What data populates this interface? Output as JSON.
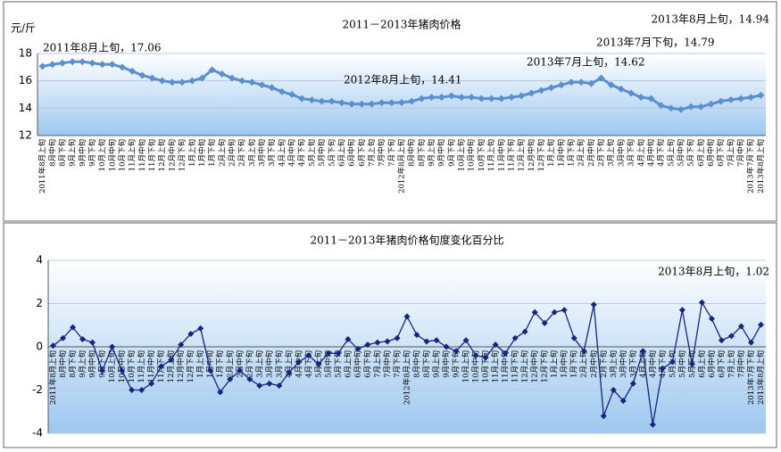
{
  "chart_data": [
    {
      "type": "line",
      "title": "2011－2013年猪肉价格",
      "y_label": "元/斤",
      "categories": [
        "2011年8月上旬",
        "8月中旬",
        "8月下旬",
        "9月上旬",
        "9月中旬",
        "9月下旬",
        "10月上旬",
        "10月中旬",
        "10月下旬",
        "11月上旬",
        "11月中旬",
        "11月下旬",
        "12月上旬",
        "12月中旬",
        "12月下旬",
        "1月上旬",
        "1月中旬",
        "1月下旬",
        "2月上旬",
        "2月中旬",
        "2月下旬",
        "3月上旬",
        "3月中旬",
        "3月下旬",
        "4月上旬",
        "4月中旬",
        "4月下旬",
        "5月上旬",
        "5月中旬",
        "5月下旬",
        "6月上旬",
        "6月中旬",
        "6月下旬",
        "7月上旬",
        "7月中旬",
        "7月下旬",
        "2012年8月上旬",
        "8月中旬",
        "8月下旬",
        "9月上旬",
        "9月中旬",
        "9月下旬",
        "10月上旬",
        "10月中旬",
        "10月下旬",
        "11月上旬",
        "11月中旬",
        "11月下旬",
        "12月上旬",
        "12月中旬",
        "12月下旬",
        "1月上旬",
        "1月中旬",
        "1月下旬",
        "2月上旬",
        "2月中旬",
        "2月下旬",
        "3月上旬",
        "3月中旬",
        "3月下旬",
        "4月上旬",
        "4月中旬",
        "4月下旬",
        "5月上旬",
        "5月中旬",
        "5月下旬",
        "6月上旬",
        "6月中旬",
        "6月下旬",
        "7月上旬",
        "7月中旬",
        "2013年7月下旬",
        "2013年8月上旬"
      ],
      "series": [
        {
          "color": "#5b8fd0",
          "values": [
            17.06,
            17.2,
            17.3,
            17.4,
            17.4,
            17.3,
            17.2,
            17.2,
            17.0,
            16.7,
            16.4,
            16.2,
            16.0,
            15.9,
            15.9,
            16.0,
            16.2,
            16.8,
            16.5,
            16.2,
            16.0,
            15.9,
            15.7,
            15.5,
            15.2,
            15.0,
            14.7,
            14.6,
            14.5,
            14.5,
            14.4,
            14.3,
            14.3,
            14.3,
            14.4,
            14.4,
            14.41,
            14.5,
            14.7,
            14.8,
            14.8,
            14.9,
            14.8,
            14.8,
            14.7,
            14.7,
            14.7,
            14.8,
            14.9,
            15.1,
            15.3,
            15.5,
            15.7,
            15.9,
            15.9,
            15.8,
            16.2,
            15.7,
            15.4,
            15.1,
            14.8,
            14.7,
            14.2,
            14.0,
            13.9,
            14.1,
            14.1,
            14.3,
            14.5,
            14.62,
            14.7,
            14.79,
            14.94
          ]
        }
      ],
      "ylim": [
        12,
        18
      ],
      "yticks": [
        12,
        14,
        16,
        18
      ],
      "grid": true,
      "annotations": [
        "2011年8月上旬，17.06",
        "2012年8月上旬，14.41",
        "2013年7月上旬，14.62",
        "2013年7月下旬，14.79",
        "2013年8月上旬，14.94"
      ]
    },
    {
      "type": "line",
      "title": "2011－2013年猪肉价格旬度变化百分比",
      "categories": [
        "2011年8月上旬",
        "8月中旬",
        "8月下旬",
        "9月上旬",
        "9月中旬",
        "9月下旬",
        "10月上旬",
        "10月中旬",
        "10月下旬",
        "11月上旬",
        "11月中旬",
        "11月下旬",
        "12月上旬",
        "12月中旬",
        "12月下旬",
        "1月上旬",
        "1月中旬",
        "1月下旬",
        "2月上旬",
        "2月中旬",
        "2月下旬",
        "3月上旬",
        "3月中旬",
        "3月下旬",
        "4月上旬",
        "4月中旬",
        "4月下旬",
        "5月上旬",
        "5月中旬",
        "5月下旬",
        "6月上旬",
        "6月中旬",
        "6月下旬",
        "7月上旬",
        "7月中旬",
        "7月下旬",
        "2012年8月上旬",
        "8月中旬",
        "8月下旬",
        "9月上旬",
        "9月中旬",
        "9月下旬",
        "10月上旬",
        "10月中旬",
        "10月下旬",
        "11月上旬",
        "11月中旬",
        "11月下旬",
        "12月上旬",
        "12月中旬",
        "12月下旬",
        "1月上旬",
        "1月中旬",
        "1月下旬",
        "2月上旬",
        "2月中旬",
        "2月下旬",
        "3月上旬",
        "3月中旬",
        "3月下旬",
        "4月上旬",
        "4月中旬",
        "4月下旬",
        "5月上旬",
        "5月中旬",
        "5月下旬",
        "6月上旬",
        "6月中旬",
        "6月下旬",
        "7月上旬",
        "7月中旬",
        "2013年7月下旬",
        "2013年8月上旬"
      ],
      "series": [
        {
          "color": "#1a237e",
          "values": [
            0.05,
            0.4,
            0.9,
            0.35,
            0.2,
            -1.1,
            0.0,
            -1.1,
            -2.0,
            -2.0,
            -1.7,
            -0.9,
            -0.6,
            0.1,
            0.6,
            0.85,
            -1.1,
            -2.1,
            -1.5,
            -1.1,
            -1.5,
            -1.8,
            -1.7,
            -1.8,
            -1.2,
            -0.7,
            -0.4,
            -0.8,
            -0.3,
            -0.3,
            0.35,
            -0.1,
            0.1,
            0.2,
            0.25,
            0.4,
            1.4,
            0.55,
            0.25,
            0.3,
            0.0,
            -0.2,
            0.3,
            -0.4,
            -0.5,
            0.1,
            -0.3,
            0.4,
            0.7,
            1.6,
            1.1,
            1.6,
            1.7,
            0.4,
            -0.2,
            1.95,
            -3.2,
            -2.0,
            -2.5,
            -1.7,
            -0.2,
            -3.6,
            -1.0,
            -0.7,
            1.7,
            -0.8,
            2.05,
            1.3,
            0.3,
            0.5,
            0.95,
            0.2,
            1.02
          ]
        }
      ],
      "ylim": [
        -4,
        4
      ],
      "yticks": [
        -4,
        -2,
        0,
        2,
        4
      ],
      "grid": true,
      "annotations": [
        "2013年8月上旬，1.02"
      ]
    }
  ]
}
